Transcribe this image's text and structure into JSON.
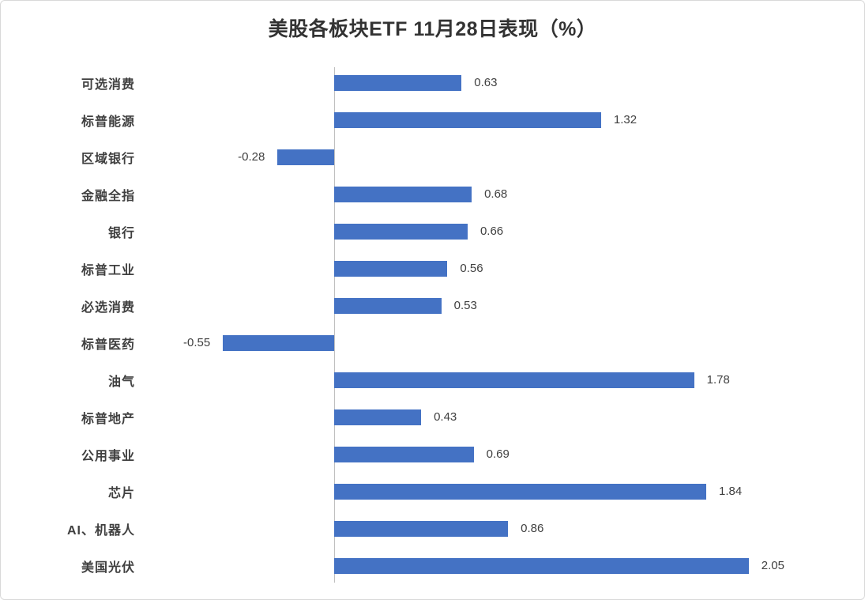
{
  "chart_data": {
    "type": "bar",
    "orientation": "horizontal",
    "title": "美股各板块ETF 11月28日表现（%）",
    "categories": [
      "可选消费",
      "标普能源",
      "区域银行",
      "金融全指",
      "银行",
      "标普工业",
      "必选消费",
      "标普医药",
      "油气",
      "标普地产",
      "公用事业",
      "芯片",
      "AI、机器人",
      "美国光伏"
    ],
    "values": [
      0.63,
      1.32,
      -0.28,
      0.68,
      0.66,
      0.56,
      0.53,
      -0.55,
      1.78,
      0.43,
      0.69,
      1.84,
      0.86,
      2.05
    ],
    "value_label_format": "0.00",
    "data_labels": true,
    "bar_color": "#4472C4",
    "axis_line_color": "#bfbfbf",
    "text_color": "#404040",
    "title_color": "#333333",
    "xlim": [
      -0.75,
      2.3
    ],
    "grid": false,
    "legend": "none"
  }
}
